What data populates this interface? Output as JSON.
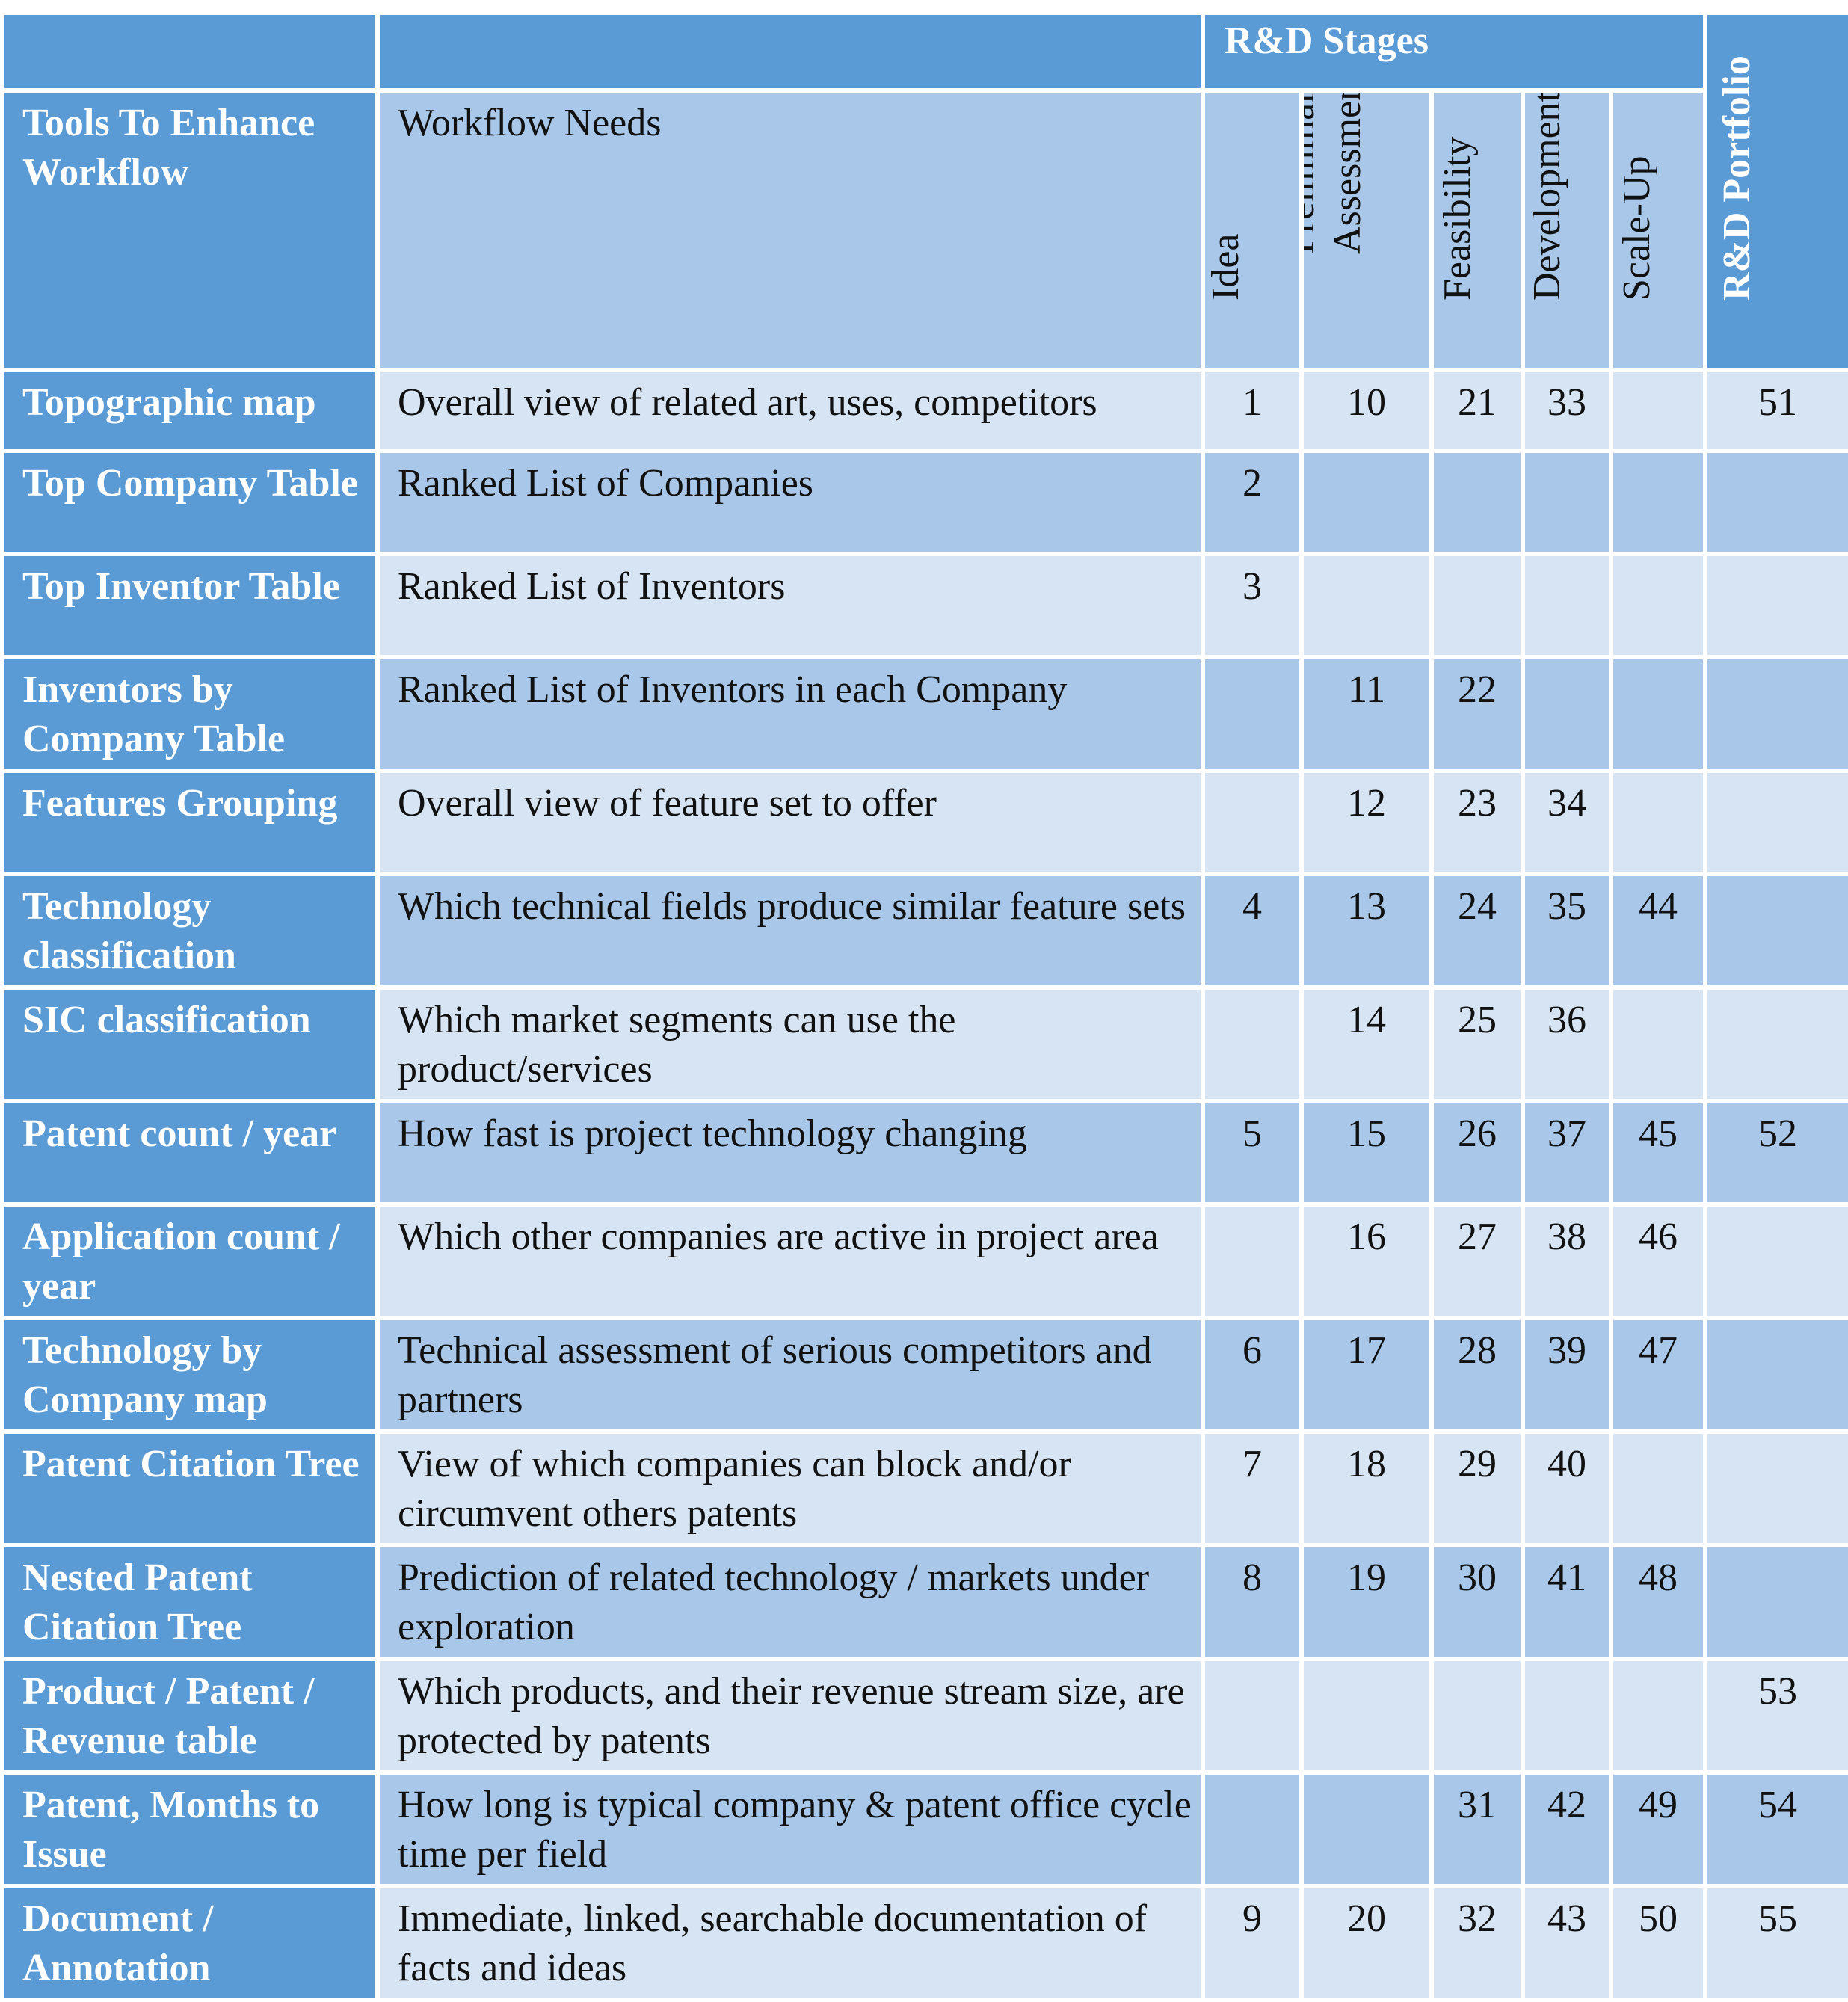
{
  "header": {
    "rd_stages_label": "R&D Stages",
    "tools_label": "Tools To Enhance Workflow",
    "needs_label": "Workflow  Needs",
    "stages": [
      "Idea",
      "Preliminary Assessment",
      "Feasibility",
      "Development",
      "Scale-Up"
    ],
    "portfolio_label": "R&D Portfolio"
  },
  "rows": [
    {
      "tool": "Topographic map",
      "need": "Overall view of related art, uses, competitors",
      "cells": [
        "1",
        "10",
        "21",
        "33",
        "",
        "51"
      ]
    },
    {
      "tool": "Top Company Table",
      "need": "Ranked List of Companies",
      "cells": [
        "2",
        "",
        "",
        "",
        "",
        ""
      ]
    },
    {
      "tool": "Top Inventor Table",
      "need": "Ranked List of Inventors",
      "cells": [
        "3",
        "",
        "",
        "",
        "",
        ""
      ]
    },
    {
      "tool": "Inventors by Company Table",
      "need": "Ranked List of Inventors in each Company",
      "cells": [
        "",
        "11",
        "22",
        "",
        "",
        ""
      ]
    },
    {
      "tool": "Features Grouping",
      "need": "Overall view of feature set to offer",
      "cells": [
        "",
        "12",
        "23",
        "34",
        "",
        ""
      ]
    },
    {
      "tool": "Technology classification",
      "need": "Which technical fields produce similar feature sets",
      "cells": [
        "4",
        "13",
        "24",
        "35",
        "44",
        ""
      ]
    },
    {
      "tool": "SIC classification",
      "need": "Which market segments can use the product/services",
      "cells": [
        "",
        "14",
        "25",
        "36",
        "",
        ""
      ]
    },
    {
      "tool": "Patent count / year",
      "need": "How fast is project technology changing",
      "cells": [
        "5",
        "15",
        "26",
        "37",
        "45",
        "52"
      ]
    },
    {
      "tool": "Application count / year",
      "need": "Which other companies are active in project area",
      "cells": [
        "",
        "16",
        "27",
        "38",
        "46",
        ""
      ]
    },
    {
      "tool": "Technology by Company map",
      "need": "Technical assessment of serious competitors and partners",
      "cells": [
        "6",
        "17",
        "28",
        "39",
        "47",
        ""
      ]
    },
    {
      "tool": "Patent Citation Tree",
      "need": "View of which companies can block and/or circumvent others patents",
      "cells": [
        "7",
        "18",
        "29",
        "40",
        "",
        ""
      ]
    },
    {
      "tool": "Nested Patent Citation Tree",
      "need": "Prediction of related technology / markets under exploration",
      "cells": [
        "8",
        "19",
        "30",
        "41",
        "48",
        ""
      ]
    },
    {
      "tool": "Product / Patent / Revenue table",
      "need": "Which products, and their revenue  stream size, are protected by patents",
      "cells": [
        "",
        "",
        "",
        "",
        "",
        "53"
      ]
    },
    {
      "tool": "Patent, Months to Issue",
      "need": "How long is typical company & patent office cycle time per field",
      "cells": [
        "",
        "",
        "31",
        "42",
        "49",
        "54"
      ]
    },
    {
      "tool": "Document / Annotation",
      "need": "Immediate, linked, searchable documentation of facts and ideas",
      "cells": [
        "9",
        "20",
        "32",
        "43",
        "50",
        "55"
      ]
    }
  ],
  "colors": {
    "header_blue": "#5b9bd5",
    "row_dark": "#a9c8e9",
    "row_light": "#d6e4f3",
    "border": "#ffffff"
  }
}
